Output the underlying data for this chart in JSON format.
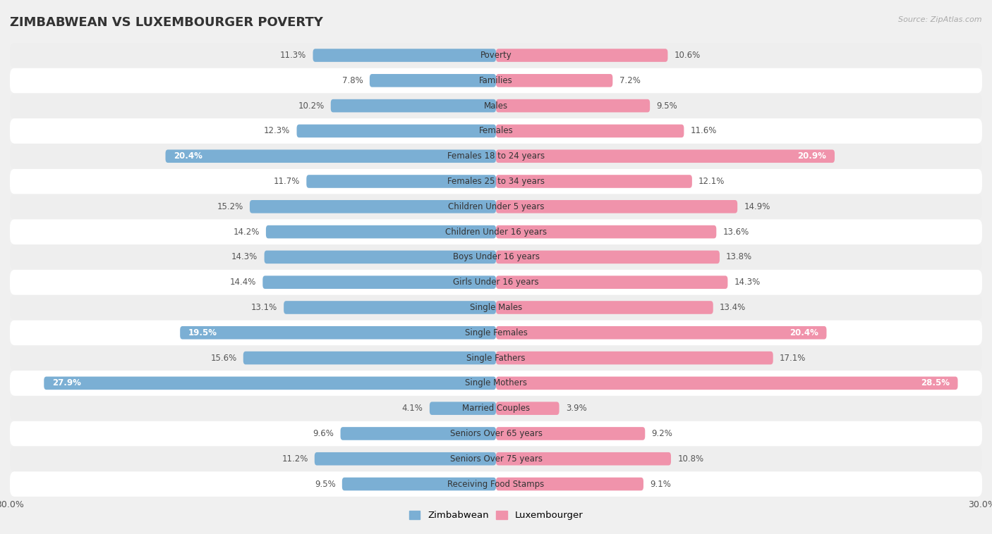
{
  "title": "ZIMBABWEAN VS LUXEMBOURGER POVERTY",
  "source": "Source: ZipAtlas.com",
  "categories": [
    "Poverty",
    "Families",
    "Males",
    "Females",
    "Females 18 to 24 years",
    "Females 25 to 34 years",
    "Children Under 5 years",
    "Children Under 16 years",
    "Boys Under 16 years",
    "Girls Under 16 years",
    "Single Males",
    "Single Females",
    "Single Fathers",
    "Single Mothers",
    "Married Couples",
    "Seniors Over 65 years",
    "Seniors Over 75 years",
    "Receiving Food Stamps"
  ],
  "zimbabwean": [
    11.3,
    7.8,
    10.2,
    12.3,
    20.4,
    11.7,
    15.2,
    14.2,
    14.3,
    14.4,
    13.1,
    19.5,
    15.6,
    27.9,
    4.1,
    9.6,
    11.2,
    9.5
  ],
  "luxembourger": [
    10.6,
    7.2,
    9.5,
    11.6,
    20.9,
    12.1,
    14.9,
    13.6,
    13.8,
    14.3,
    13.4,
    20.4,
    17.1,
    28.5,
    3.9,
    9.2,
    10.8,
    9.1
  ],
  "zimbabwean_color": "#7bafd4",
  "luxembourger_color": "#f093ab",
  "row_odd_color": "#ffffff",
  "row_even_color": "#eeeeee",
  "background_color": "#f0f0f0",
  "xlim": 30.0,
  "bar_height": 0.52,
  "large_threshold": 18.0,
  "legend_labels": [
    "Zimbabwean",
    "Luxembourger"
  ],
  "title_fontsize": 13,
  "label_fontsize": 8.5,
  "cat_fontsize": 8.5
}
